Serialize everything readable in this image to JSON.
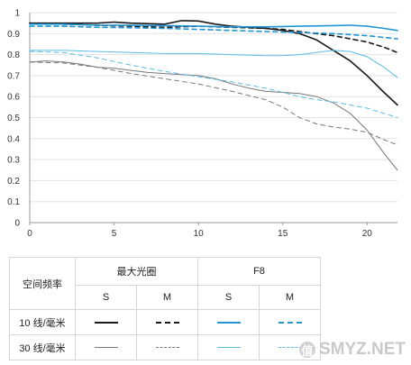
{
  "chart_data": {
    "type": "line",
    "title": "",
    "xlabel": "",
    "ylabel": "",
    "xlim": [
      0,
      21.8
    ],
    "ylim": [
      0,
      1
    ],
    "xticks": [
      "0",
      "5",
      "10",
      "15",
      "20"
    ],
    "yticks": [
      "0",
      "0.1",
      "0.2",
      "0.3",
      "0.4",
      "0.5",
      "0.6",
      "0.7",
      "0.8",
      "0.9",
      "1"
    ],
    "grid": "horizontal",
    "series": [
      {
        "name": "",
        "color": "#1a1a1a",
        "style": "solid",
        "x": [
          0,
          2,
          4,
          5,
          6,
          8,
          9,
          10,
          11,
          12,
          13,
          14,
          15,
          16,
          17,
          18,
          19,
          20,
          21,
          21.8
        ],
        "y": [
          0.95,
          0.95,
          0.95,
          0.955,
          0.95,
          0.945,
          0.962,
          0.96,
          0.945,
          0.935,
          0.93,
          0.925,
          0.915,
          0.9,
          0.87,
          0.82,
          0.77,
          0.7,
          0.62,
          0.56
        ]
      },
      {
        "name": "",
        "color": "#1a1a1a",
        "style": "dashed",
        "x": [
          0,
          2,
          4,
          6,
          8,
          10,
          12,
          14,
          15,
          16,
          17,
          18,
          19,
          20,
          21,
          21.8
        ],
        "y": [
          0.95,
          0.945,
          0.94,
          0.935,
          0.93,
          0.935,
          0.93,
          0.925,
          0.92,
          0.91,
          0.9,
          0.89,
          0.875,
          0.86,
          0.835,
          0.81
        ]
      },
      {
        "name": "",
        "color": "#2196d3",
        "style": "solid",
        "x": [
          0,
          2,
          4,
          6,
          8,
          10,
          12,
          14,
          16,
          18,
          19,
          20,
          21,
          21.8
        ],
        "y": [
          0.945,
          0.945,
          0.94,
          0.94,
          0.938,
          0.935,
          0.932,
          0.932,
          0.935,
          0.938,
          0.94,
          0.935,
          0.925,
          0.915
        ]
      },
      {
        "name": "",
        "color": "#2196d3",
        "style": "dashed",
        "x": [
          0,
          2,
          4,
          6,
          8,
          10,
          12,
          14,
          16,
          18,
          20,
          21,
          21.8
        ],
        "y": [
          0.935,
          0.935,
          0.93,
          0.928,
          0.925,
          0.92,
          0.915,
          0.91,
          0.905,
          0.9,
          0.89,
          0.882,
          0.875
        ]
      },
      {
        "name": "",
        "color": "#777777",
        "style": "solid",
        "x": [
          0,
          1,
          2,
          3,
          4,
          5,
          6,
          7,
          8,
          9,
          10,
          11,
          12,
          13,
          14,
          15,
          16,
          17,
          18,
          19,
          20,
          21,
          21.8
        ],
        "y": [
          0.765,
          0.77,
          0.765,
          0.755,
          0.74,
          0.735,
          0.725,
          0.715,
          0.71,
          0.705,
          0.7,
          0.685,
          0.66,
          0.64,
          0.625,
          0.62,
          0.615,
          0.6,
          0.57,
          0.52,
          0.44,
          0.33,
          0.25
        ]
      },
      {
        "name": "",
        "color": "#777777",
        "style": "dashed",
        "x": [
          0,
          2,
          4,
          6,
          8,
          10,
          12,
          14,
          15,
          16,
          17,
          18,
          19,
          20,
          21,
          21.8
        ],
        "y": [
          0.765,
          0.76,
          0.74,
          0.71,
          0.685,
          0.66,
          0.625,
          0.585,
          0.55,
          0.5,
          0.47,
          0.455,
          0.445,
          0.43,
          0.395,
          0.37
        ]
      },
      {
        "name": "",
        "color": "#5bbde6",
        "style": "solid",
        "x": [
          0,
          2,
          4,
          6,
          8,
          10,
          12,
          14,
          15,
          16,
          17,
          18,
          19,
          20,
          21,
          21.8
        ],
        "y": [
          0.82,
          0.82,
          0.815,
          0.81,
          0.805,
          0.805,
          0.8,
          0.795,
          0.795,
          0.8,
          0.81,
          0.82,
          0.815,
          0.79,
          0.74,
          0.69
        ]
      },
      {
        "name": "",
        "color": "#5bbde6",
        "style": "dashed",
        "x": [
          0,
          2,
          4,
          6,
          8,
          10,
          12,
          14,
          15,
          16,
          17,
          18,
          19,
          20,
          21,
          21.8
        ],
        "y": [
          0.815,
          0.81,
          0.785,
          0.75,
          0.72,
          0.695,
          0.67,
          0.64,
          0.62,
          0.6,
          0.585,
          0.575,
          0.56,
          0.545,
          0.52,
          0.5
        ]
      }
    ]
  },
  "legend": {
    "header_col": "空间频率",
    "group_max": "最大光圈",
    "group_f8": "F8",
    "s_label": "S",
    "m_label": "M",
    "row_10": "10 线/毫米",
    "row_30": "30 线/毫米",
    "colors": {
      "black": "#1a1a1a",
      "gray": "#777777",
      "blue": "#2196d3",
      "light_blue": "#5bbde6"
    }
  },
  "watermark": {
    "badge": "值",
    "text": "SMYZ.NET"
  }
}
